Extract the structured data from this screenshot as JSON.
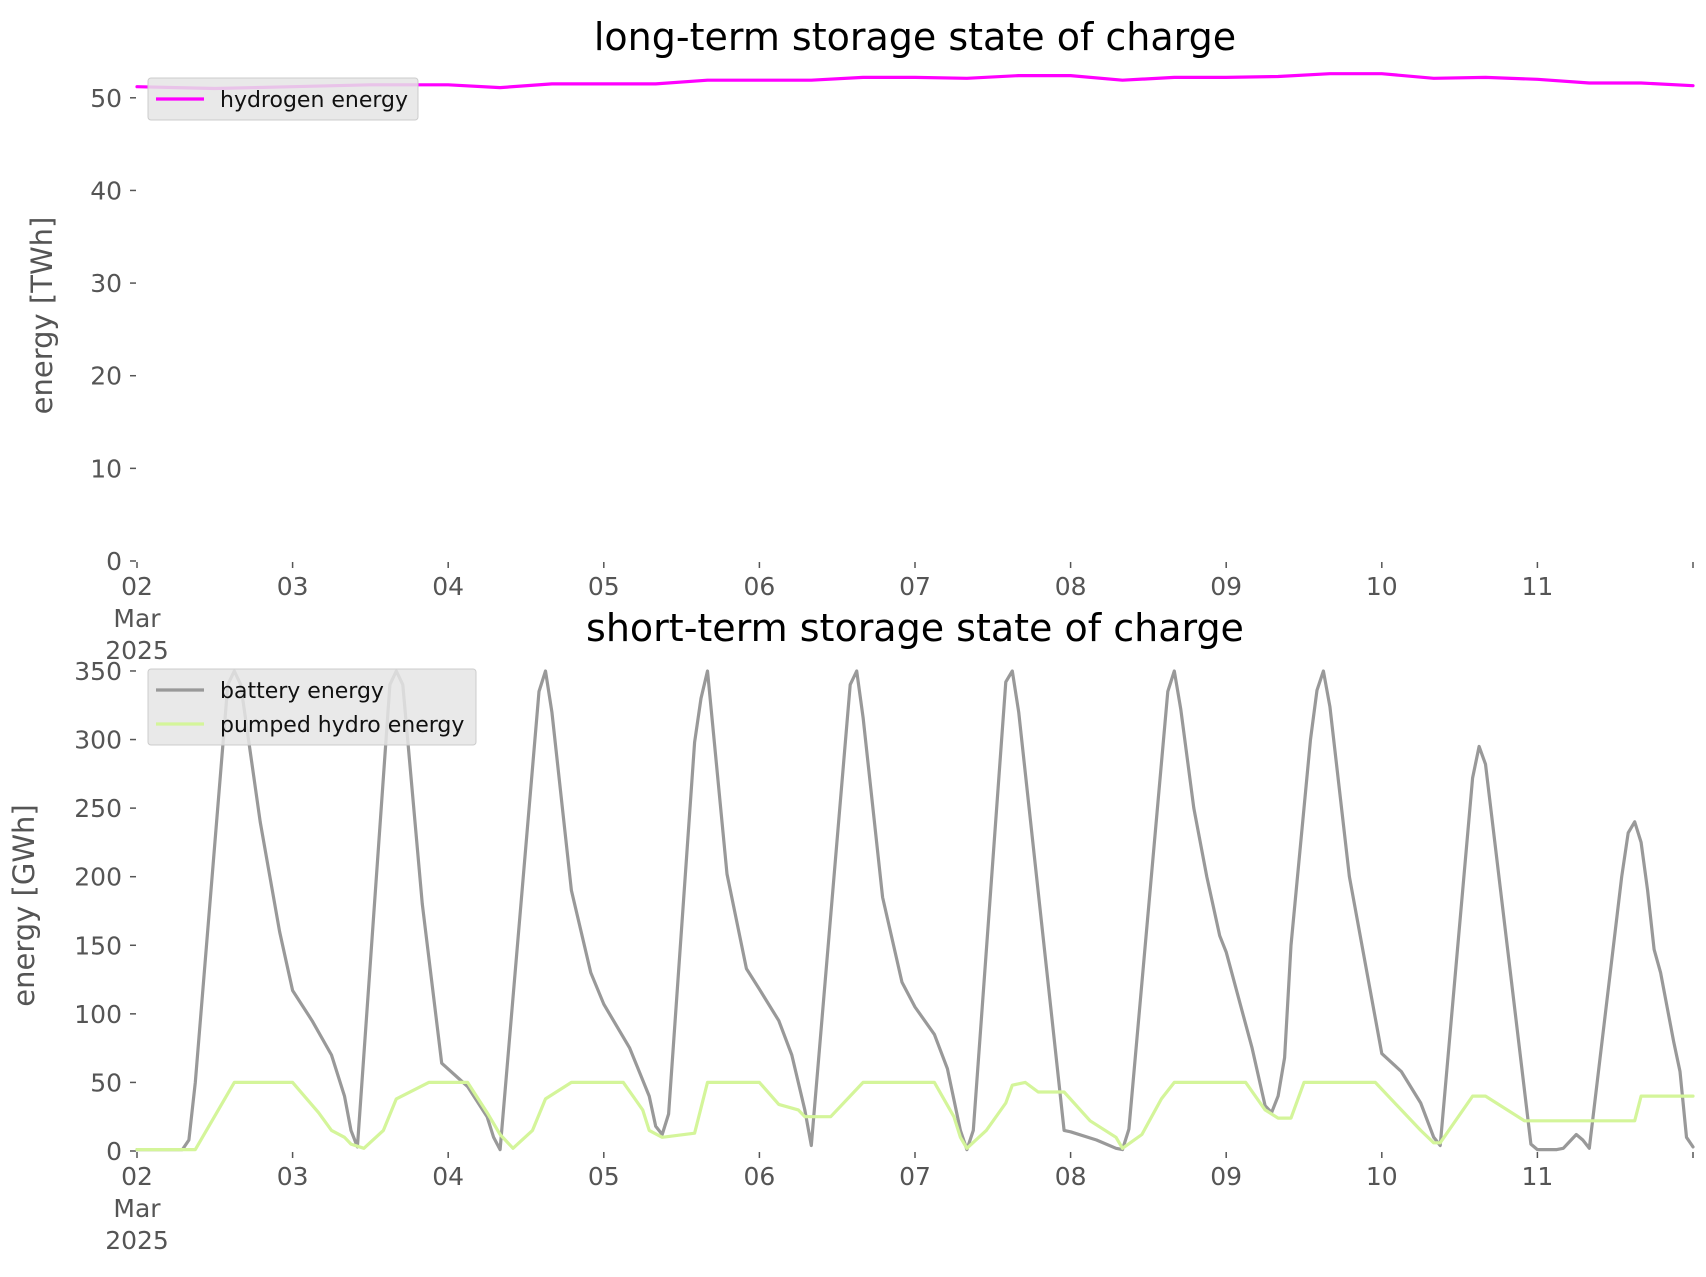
{
  "chart_data": [
    {
      "type": "line",
      "title": "long-term storage state of charge",
      "xlabel": "",
      "ylabel": "energy [TWh]",
      "ylim": [
        0,
        53
      ],
      "xlim": [
        "2025-03-02",
        "2025-03-12"
      ],
      "y_ticks": [
        0,
        10,
        20,
        30,
        40,
        50
      ],
      "x_ticks": [
        "2025-03-02",
        "2025-03-03",
        "2025-03-04",
        "2025-03-05",
        "2025-03-06",
        "2025-03-07",
        "2025-03-08",
        "2025-03-09",
        "2025-03-10",
        "2025-03-11",
        "2025-03-12"
      ],
      "x_tick_labels": [
        "02\nMar\n2025",
        "03",
        "04",
        "05",
        "06",
        "07",
        "08",
        "09",
        "10",
        "11",
        ""
      ],
      "grid": false,
      "legend_position": "top-left",
      "series": [
        {
          "name": "hydrogen energy",
          "color": "#ff00ff",
          "x": [
            "2025-03-02 00:00",
            "2025-03-02 12:00",
            "2025-03-03 00:00",
            "2025-03-03 12:00",
            "2025-03-04 00:00",
            "2025-03-04 08:00",
            "2025-03-04 16:00",
            "2025-03-05 00:00",
            "2025-03-05 08:00",
            "2025-03-05 16:00",
            "2025-03-06 00:00",
            "2025-03-06 08:00",
            "2025-03-06 16:00",
            "2025-03-07 00:00",
            "2025-03-07 08:00",
            "2025-03-07 16:00",
            "2025-03-08 00:00",
            "2025-03-08 08:00",
            "2025-03-08 16:00",
            "2025-03-09 00:00",
            "2025-03-09 08:00",
            "2025-03-09 16:00",
            "2025-03-10 00:00",
            "2025-03-10 08:00",
            "2025-03-10 16:00",
            "2025-03-11 00:00",
            "2025-03-11 08:00",
            "2025-03-11 16:00",
            "2025-03-12 00:00"
          ],
          "values": [
            51.2,
            51.0,
            51.2,
            51.4,
            51.4,
            51.1,
            51.5,
            51.5,
            51.5,
            51.9,
            51.9,
            51.9,
            52.2,
            52.2,
            52.1,
            52.4,
            52.4,
            51.9,
            52.2,
            52.2,
            52.3,
            52.6,
            52.6,
            52.1,
            52.2,
            52.0,
            51.6,
            51.6,
            51.3
          ]
        }
      ]
    },
    {
      "type": "line",
      "title": "short-term storage state of charge",
      "xlabel": "",
      "ylabel": "energy [GWh]",
      "ylim": [
        0,
        358
      ],
      "xlim": [
        "2025-03-02",
        "2025-03-12"
      ],
      "y_ticks": [
        0,
        50,
        100,
        150,
        200,
        250,
        300,
        350
      ],
      "x_ticks": [
        "2025-03-02",
        "2025-03-03",
        "2025-03-04",
        "2025-03-05",
        "2025-03-06",
        "2025-03-07",
        "2025-03-08",
        "2025-03-09",
        "2025-03-10",
        "2025-03-11",
        "2025-03-12"
      ],
      "x_tick_labels": [
        "02\nMar\n2025",
        "03",
        "04",
        "05",
        "06",
        "07",
        "08",
        "09",
        "10",
        "11",
        ""
      ],
      "grid": false,
      "legend_position": "top-left",
      "series": [
        {
          "name": "battery energy",
          "color": "#999999",
          "x": [
            "2025-03-02 00:00",
            "2025-03-02 07:00",
            "2025-03-02 08:00",
            "2025-03-02 09:00",
            "2025-03-02 14:00",
            "2025-03-02 15:00",
            "2025-03-02 16:00",
            "2025-03-02 19:00",
            "2025-03-02 22:00",
            "2025-03-03 00:00",
            "2025-03-03 03:00",
            "2025-03-03 06:00",
            "2025-03-03 08:00",
            "2025-03-03 09:00",
            "2025-03-03 10:00",
            "2025-03-03 15:00",
            "2025-03-03 16:00",
            "2025-03-03 17:00",
            "2025-03-03 20:00",
            "2025-03-03 23:00",
            "2025-03-04 03:00",
            "2025-03-04 06:00",
            "2025-03-04 07:00",
            "2025-03-04 08:00",
            "2025-03-04 14:00",
            "2025-03-04 15:00",
            "2025-03-04 16:00",
            "2025-03-04 19:00",
            "2025-03-04 22:00",
            "2025-03-05 00:00",
            "2025-03-05 04:00",
            "2025-03-05 07:00",
            "2025-03-05 08:00",
            "2025-03-05 09:00",
            "2025-03-05 10:00",
            "2025-03-05 14:00",
            "2025-03-05 15:00",
            "2025-03-05 16:00",
            "2025-03-05 19:00",
            "2025-03-05 22:00",
            "2025-03-06 00:00",
            "2025-03-06 03:00",
            "2025-03-06 05:00",
            "2025-03-06 07:00",
            "2025-03-06 08:00",
            "2025-03-06 09:00",
            "2025-03-06 14:00",
            "2025-03-06 15:00",
            "2025-03-06 16:00",
            "2025-03-06 19:00",
            "2025-03-06 22:00",
            "2025-03-07 00:00",
            "2025-03-07 03:00",
            "2025-03-07 05:00",
            "2025-03-07 07:00",
            "2025-03-07 08:00",
            "2025-03-07 09:00",
            "2025-03-07 14:00",
            "2025-03-07 15:00",
            "2025-03-07 16:00",
            "2025-03-07 23:00",
            "2025-03-08 00:00",
            "2025-03-08 04:00",
            "2025-03-08 07:00",
            "2025-03-08 08:00",
            "2025-03-08 09:00",
            "2025-03-08 15:00",
            "2025-03-08 16:00",
            "2025-03-08 17:00",
            "2025-03-08 19:00",
            "2025-03-08 21:00",
            "2025-03-08 23:00",
            "2025-03-09 00:00",
            "2025-03-09 04:00",
            "2025-03-09 06:00",
            "2025-03-09 07:00",
            "2025-03-09 08:00",
            "2025-03-09 09:00",
            "2025-03-09 10:00",
            "2025-03-09 13:00",
            "2025-03-09 14:00",
            "2025-03-09 15:00",
            "2025-03-09 16:00",
            "2025-03-09 19:00",
            "2025-03-10 00:00",
            "2025-03-10 03:00",
            "2025-03-10 06:00",
            "2025-03-10 08:00",
            "2025-03-10 09:00",
            "2025-03-10 14:00",
            "2025-03-10 15:00",
            "2025-03-10 16:00",
            "2025-03-10 23:00",
            "2025-03-11 00:00",
            "2025-03-11 01:00",
            "2025-03-11 03:00",
            "2025-03-11 04:00",
            "2025-03-11 06:00",
            "2025-03-11 07:00",
            "2025-03-11 08:00",
            "2025-03-11 13:00",
            "2025-03-11 14:00",
            "2025-03-11 15:00",
            "2025-03-11 16:00",
            "2025-03-11 17:00",
            "2025-03-11 18:00",
            "2025-03-11 19:00",
            "2025-03-11 21:00",
            "2025-03-11 22:00",
            "2025-03-11 23:00",
            "2025-03-12 00:00"
          ],
          "values": [
            1,
            1,
            8,
            50,
            340,
            350,
            340,
            240,
            160,
            117,
            95,
            70,
            40,
            15,
            3,
            340,
            350,
            340,
            180,
            64,
            47,
            25,
            10,
            1,
            335,
            350,
            320,
            190,
            130,
            107,
            75,
            40,
            18,
            12,
            27,
            298,
            330,
            350,
            202,
            133,
            118,
            95,
            70,
            30,
            4,
            60,
            340,
            350,
            316,
            185,
            123,
            105,
            85,
            60,
            15,
            1,
            15,
            342,
            350,
            320,
            15,
            14,
            8,
            2,
            1,
            16,
            335,
            350,
            322,
            250,
            200,
            157,
            145,
            75,
            33,
            28,
            40,
            68,
            150,
            300,
            336,
            350,
            324,
            200,
            71,
            58,
            35,
            10,
            4,
            272,
            295,
            282,
            5,
            1,
            1,
            1,
            2,
            12,
            8,
            2,
            200,
            232,
            240,
            225,
            190,
            147,
            130,
            80,
            58,
            10,
            3
          ]
        },
        {
          "name": "pumped hydro energy",
          "color": "#d4f59a",
          "x": [
            "2025-03-02 00:00",
            "2025-03-02 09:00",
            "2025-03-02 15:00",
            "2025-03-02 18:00",
            "2025-03-03 00:00",
            "2025-03-03 04:00",
            "2025-03-03 06:00",
            "2025-03-03 08:00",
            "2025-03-03 09:00",
            "2025-03-03 11:00",
            "2025-03-03 14:00",
            "2025-03-03 16:00",
            "2025-03-03 21:00",
            "2025-03-03 23:00",
            "2025-03-04 03:00",
            "2025-03-04 06:00",
            "2025-03-04 08:00",
            "2025-03-04 10:00",
            "2025-03-04 13:00",
            "2025-03-04 15:00",
            "2025-03-04 19:00",
            "2025-03-04 23:00",
            "2025-03-05 03:00",
            "2025-03-05 06:00",
            "2025-03-05 07:00",
            "2025-03-05 09:00",
            "2025-03-05 14:00",
            "2025-03-05 16:00",
            "2025-03-05 22:00",
            "2025-03-06 00:00",
            "2025-03-06 03:00",
            "2025-03-06 06:00",
            "2025-03-06 07:00",
            "2025-03-06 11:00",
            "2025-03-06 16:00",
            "2025-03-06 20:00",
            "2025-03-06 23:00",
            "2025-03-07 03:00",
            "2025-03-07 06:00",
            "2025-03-07 07:00",
            "2025-03-07 08:00",
            "2025-03-07 11:00",
            "2025-03-07 14:00",
            "2025-03-07 15:00",
            "2025-03-07 17:00",
            "2025-03-07 19:00",
            "2025-03-07 23:00",
            "2025-03-08 03:00",
            "2025-03-08 07:00",
            "2025-03-08 08:00",
            "2025-03-08 11:00",
            "2025-03-08 14:00",
            "2025-03-08 16:00",
            "2025-03-08 23:00",
            "2025-03-09 03:00",
            "2025-03-09 06:00",
            "2025-03-09 08:00",
            "2025-03-09 10:00",
            "2025-03-09 12:00",
            "2025-03-09 18:00",
            "2025-03-09 23:00",
            "2025-03-10 03:00",
            "2025-03-10 06:00",
            "2025-03-10 08:00",
            "2025-03-10 09:00",
            "2025-03-10 14:00",
            "2025-03-10 16:00",
            "2025-03-10 22:00",
            "2025-03-11 10:00",
            "2025-03-11 15:00",
            "2025-03-11 16:00",
            "2025-03-12 00:00"
          ],
          "values": [
            1,
            1,
            50,
            50,
            50,
            28,
            15,
            10,
            5,
            2,
            15,
            38,
            50,
            50,
            50,
            28,
            12,
            2,
            15,
            38,
            50,
            50,
            50,
            30,
            15,
            10,
            13,
            50,
            50,
            50,
            34,
            30,
            25,
            25,
            50,
            50,
            50,
            50,
            25,
            10,
            2,
            15,
            35,
            48,
            50,
            43,
            43,
            22,
            10,
            2,
            12,
            38,
            50,
            50,
            50,
            30,
            24,
            24,
            50,
            50,
            50,
            30,
            15,
            6,
            6,
            40,
            40,
            22,
            22,
            22,
            40,
            40
          ]
        }
      ]
    }
  ]
}
